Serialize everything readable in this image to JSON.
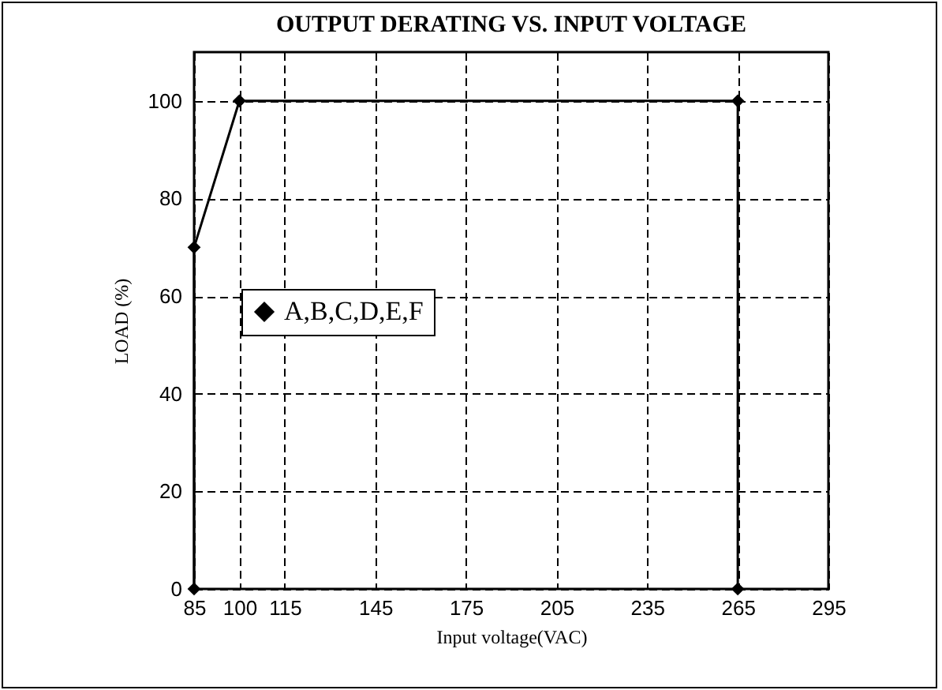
{
  "chart_data": {
    "type": "line",
    "title": "OUTPUT DERATING VS. INPUT VOLTAGE",
    "xlabel": "Input voltage(VAC)",
    "ylabel": "LOAD (%)",
    "series": [
      {
        "name": "A,B,C,D,E,F",
        "color": "#000000",
        "x": [
          85,
          85,
          100,
          265,
          265
        ],
        "values": [
          0,
          70,
          100,
          100,
          0
        ]
      }
    ],
    "xlim": [
      85,
      295
    ],
    "xticks": [
      85,
      100,
      115,
      145,
      175,
      205,
      235,
      265,
      295
    ],
    "ylim": [
      0,
      110
    ],
    "yticks": [
      0,
      20,
      40,
      60,
      80,
      100
    ],
    "grid": true,
    "legend": "left",
    "marker": "diamond",
    "line_style": "solid"
  }
}
